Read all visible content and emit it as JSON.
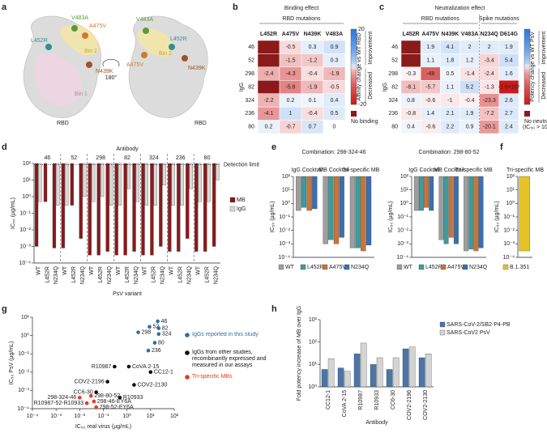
{
  "panel_labels": [
    "a",
    "b",
    "c",
    "d",
    "e",
    "f",
    "g",
    "h"
  ],
  "structure": {
    "left": [
      "V483A",
      "A475V",
      "L452R",
      "N439K",
      "Bin 2",
      "Bin 1",
      "RBD"
    ],
    "rotation": "180°",
    "right": [
      "V483A",
      "L452R",
      "Bin 2",
      "A475V",
      "N439K",
      "RBD"
    ]
  },
  "chart_data": [
    {
      "type": "heatmap",
      "title": "Binding effect",
      "column_groups": [
        "RBD mutations"
      ],
      "ylabel": "IgG",
      "columns": [
        "L452R",
        "A475V",
        "N439K",
        "V483A"
      ],
      "column_colors": [
        "#2f8f8f",
        "#d07a2a",
        "#a0522d",
        "#5a9a3a"
      ],
      "rows": [
        "46",
        "52",
        "298",
        "82",
        "324",
        "236",
        "80"
      ],
      "values": [
        [
          null,
          -0.5,
          0.3,
          0.9
        ],
        [
          null,
          -1.5,
          -1.2,
          0.3
        ],
        [
          -2.4,
          -4.3,
          -0.4,
          -1.9
        ],
        [
          null,
          -5.8,
          -1.9,
          -0.5
        ],
        [
          -2.2,
          0.2,
          0.1,
          0.4
        ],
        [
          -4.1,
          1.0,
          -0.4,
          0.5
        ],
        [
          0.2,
          -0.7,
          0.7,
          0.0
        ]
      ],
      "colorbar_label": "Affinity change vs WT RBD",
      "colorbar_lim": [
        -20,
        20
      ],
      "colorbar_ticks": [
        20,
        -20
      ],
      "improvement_label": "Improvement",
      "decrease_label": "Decreased",
      "null_label": "No binding"
    },
    {
      "type": "heatmap",
      "title": "Neutralization effect",
      "column_groups": [
        "RBD mutations",
        "Spike mutations"
      ],
      "ylabel": "IgG",
      "columns": [
        "L452R",
        "A475V",
        "N439K",
        "V483A",
        "N234Q",
        "D614G"
      ],
      "column_colors": [
        "#2f8f8f",
        "#d07a2a",
        "#a0522d",
        "#5a9a3a",
        "#2e6da4",
        "#111111"
      ],
      "rows": [
        "46",
        "52",
        "298",
        "82",
        "324",
        "236",
        "80"
      ],
      "values": [
        [
          null,
          1.9,
          4.1,
          2.0,
          2.0,
          1.9
        ],
        [
          null,
          1.1,
          1.8,
          1.2,
          -3.4,
          5.4
        ],
        [
          -0.3,
          -48.0,
          0.5,
          -1.4,
          -2.4,
          1.6
        ],
        [
          -8.1,
          -5.7,
          1.1,
          5.2,
          -1.3,
          -1600
        ],
        [
          0.8,
          -0.6,
          -1.0,
          -0.4,
          -23.3,
          2.6
        ],
        [
          -0.8,
          1.4,
          2.1,
          1.9,
          -7.2,
          2.7
        ],
        [
          0.4,
          -0.6,
          2.2,
          0.9,
          -20.1,
          2.4
        ]
      ],
      "value_labels": [
        [
          null,
          null,
          null,
          null,
          null,
          null
        ],
        [
          null,
          null,
          null,
          null,
          null,
          null
        ],
        [
          null,
          null,
          null,
          null,
          null,
          null
        ],
        [
          null,
          null,
          null,
          null,
          null,
          "-1.6×10³"
        ],
        [
          null,
          null,
          null,
          null,
          null,
          null
        ],
        [
          null,
          null,
          null,
          null,
          null,
          null
        ],
        [
          null,
          null,
          null,
          null,
          null,
          null
        ]
      ],
      "colorbar_label": "Potency change vs WT PsV",
      "colorbar_lim": [
        -100,
        100
      ],
      "improvement_label": "Improvement",
      "decrease_label": "Decreased",
      "null_label": "No neutral",
      "null_note": "(IC₅₀ > 100 µg/mL)"
    },
    {
      "type": "bar",
      "log_y": true,
      "bars_hang": true,
      "group_title": "Antibody",
      "groups": [
        "46",
        "52",
        "298",
        "82",
        "324",
        "236",
        "80"
      ],
      "categories": [
        "WT",
        "L452R",
        "N234Q",
        "WT",
        "L452R",
        "N234Q",
        "WT",
        "L452R",
        "N234Q",
        "WT",
        "L452R",
        "N234Q",
        "WT",
        "L452R",
        "N234Q",
        "WT",
        "L452R",
        "N234Q",
        "WT",
        "L452R",
        "N234Q"
      ],
      "series": [
        {
          "name": "MB",
          "color": "#8b1a1a",
          "values": [
            0.001,
            0.5,
            0.0008,
            0.0008,
            0.3,
            0.003,
            0.0003,
            0.0003,
            0.0005,
            0.0003,
            0.0003,
            0.0005,
            0.0003,
            0.0003,
            0.001,
            0.0005,
            0.0005,
            0.003,
            0.0005,
            0.0005,
            0.001
          ]
        },
        {
          "name": "IgG",
          "color": "#d9d9d9",
          "values": [
            0.5,
            100,
            0.3,
            0.3,
            100,
            1,
            0.5,
            1,
            0.3,
            0.3,
            3,
            0.5,
            0.3,
            0.3,
            5,
            0.3,
            0.3,
            3,
            0.5,
            0.5,
            10
          ]
        }
      ],
      "ylabel": "IC₅₀ (µg/mL)",
      "xlabel": "PsV variant",
      "ylim": [
        0.0001,
        100
      ],
      "yticks": [
        {
          "value": 0.0001,
          "label": "10⁻⁴"
        },
        {
          "value": 0.001,
          "label": "10⁻³"
        },
        {
          "value": 0.01,
          "label": "10⁻²"
        },
        {
          "value": 0.1,
          "label": "10⁻¹"
        },
        {
          "value": 1,
          "label": "10⁰"
        },
        {
          "value": 10,
          "label": "10¹"
        },
        {
          "value": 100,
          "label": "10²"
        }
      ],
      "detection_limit": 100,
      "detection_label": "Detection limit",
      "legend": "right"
    },
    {
      "type": "bar",
      "log_y": true,
      "bars_hang": true,
      "category_axis": "top",
      "title": "Combination: 298-324-46",
      "categories": [
        "IgG Cocktail",
        "MB Cocktail",
        "Tri-specific MB"
      ],
      "series": [
        {
          "name": "WT",
          "color": "#9e9e9e",
          "values": [
            0.3,
            0.001,
            0.0005
          ]
        },
        {
          "name": "L452R",
          "color": "#3f9a9a",
          "values": [
            0.5,
            0.002,
            0.0005
          ]
        },
        {
          "name": "A475V",
          "color": "#c8743a",
          "values": [
            0.3,
            0.001,
            0.0003
          ]
        },
        {
          "name": "N234Q",
          "color": "#3b6fb0",
          "values": [
            0.4,
            0.003,
            0.0008
          ]
        }
      ],
      "ylabel": "IC₅₀ (µg/mL)",
      "ylim": [
        0.0001,
        100
      ],
      "yticks": [
        {
          "value": 0.0001,
          "label": "10⁻⁴"
        },
        {
          "value": 0.001,
          "label": "10⁻³"
        },
        {
          "value": 0.01,
          "label": "10⁻²"
        },
        {
          "value": 0.1,
          "label": "10⁻¹"
        },
        {
          "value": 1,
          "label": "10⁰"
        },
        {
          "value": 10,
          "label": "10¹"
        },
        {
          "value": 100,
          "label": "10²"
        }
      ],
      "legend": "bottom"
    },
    {
      "type": "bar",
      "log_y": true,
      "bars_hang": true,
      "category_axis": "top",
      "title": "Combination: 298-80-52",
      "categories": [
        "IgG Cocktail",
        "MB Cocktail",
        "Tri-specific MB"
      ],
      "series": [
        {
          "name": "WT",
          "color": "#9e9e9e",
          "values": [
            0.3,
            0.002,
            0.0003
          ]
        },
        {
          "name": "L452R",
          "color": "#3f9a9a",
          "values": [
            0.3,
            0.001,
            0.0004
          ]
        },
        {
          "name": "A475V",
          "color": "#c8743a",
          "values": [
            0.5,
            0.003,
            0.0003
          ]
        },
        {
          "name": "N234Q",
          "color": "#3b6fb0",
          "values": [
            0.3,
            0.001,
            0.0005
          ]
        }
      ],
      "ylabel": "IC₅₀ (µg/mL)",
      "ylim": [
        0.0001,
        100
      ],
      "yticks": [
        {
          "value": 0.0001,
          "label": "10⁻⁴"
        },
        {
          "value": 0.001,
          "label": "10⁻³"
        },
        {
          "value": 0.01,
          "label": "10⁻²"
        },
        {
          "value": 0.1,
          "label": "10⁻¹"
        },
        {
          "value": 1,
          "label": "10⁰"
        },
        {
          "value": 10,
          "label": "10¹"
        },
        {
          "value": 100,
          "label": "10²"
        }
      ],
      "legend": "bottom"
    },
    {
      "type": "bar",
      "log_y": true,
      "bars_hang": true,
      "category_axis": "top",
      "categories": [
        "Tri-specific MB"
      ],
      "series": [
        {
          "name": "B.1.351",
          "color": "#e6c229",
          "values": [
            0.0003
          ]
        }
      ],
      "ylabel": "IC₅₀ (µg/mL)",
      "ylim": [
        0.0001,
        100
      ],
      "yticks": [
        {
          "value": 0.0001,
          "label": "10⁻⁴"
        },
        {
          "value": 0.001,
          "label": "10⁻³"
        },
        {
          "value": 0.01,
          "label": "10⁻²"
        },
        {
          "value": 0.1,
          "label": "10⁻¹"
        },
        {
          "value": 1,
          "label": "10⁰"
        },
        {
          "value": 10,
          "label": "10¹"
        },
        {
          "value": 100,
          "label": "10²"
        }
      ],
      "legend": "bottom"
    },
    {
      "type": "scatter",
      "log_x": true,
      "log_y": true,
      "series": [
        {
          "name": "IgGs reported in this study",
          "color": "#2e6da4",
          "labels": [
            "46",
            "52",
            "82",
            "324",
            "298",
            "80",
            "236"
          ],
          "x": [
            20,
            9,
            22,
            22,
            3,
            15,
            8
          ],
          "values": [
            6,
            3,
            2.5,
            1.2,
            1.5,
            0.4,
            0.15
          ]
        },
        {
          "name": "IgGs from other studies, recombinantly expressed and measured in our assays",
          "color": "#111111",
          "labels": [
            "R10987",
            "CoVA 2-15",
            "CC12-1",
            "COV2-2196",
            "COV2-2130",
            "R10933",
            "CC6-30"
          ],
          "x": [
            0.3,
            1.2,
            10,
            0.15,
            2,
            0.5,
            0.05
          ],
          "values": [
            0.02,
            0.02,
            0.01,
            0.003,
            0.002,
            0.0004,
            0.0008
          ]
        },
        {
          "name": "Tri-specific MBs",
          "color": "#e8371e",
          "labels": [
            "298-324-46",
            "298-80-52",
            "298-46-EY6A",
            "R10987-52-R10933",
            "298-52-EY6A"
          ],
          "x": [
            0.01,
            0.03,
            0.04,
            0.02,
            0.05
          ],
          "values": [
            0.0004,
            0.0005,
            0.00025,
            0.0002,
            0.00012
          ]
        }
      ],
      "xlabel": "IC₅₀ real virus (µg/mL)",
      "ylabel": "IC₅₀ PsV (µg/mL)",
      "xlim": [
        0.0001,
        100
      ],
      "ylim": [
        0.0001,
        10
      ],
      "xticks": [
        {
          "value": 0.0001,
          "label": "10⁻⁴"
        },
        {
          "value": 0.001,
          "label": "10⁻³"
        },
        {
          "value": 0.01,
          "label": "10⁻²"
        },
        {
          "value": 0.1,
          "label": "10⁻¹"
        },
        {
          "value": 1,
          "label": "10⁰"
        },
        {
          "value": 10,
          "label": "10¹"
        },
        {
          "value": 100,
          "label": "10²"
        }
      ],
      "yticks": [
        {
          "value": 0.0001,
          "label": "10⁻⁴"
        },
        {
          "value": 0.001,
          "label": "10⁻³"
        },
        {
          "value": 0.01,
          "label": "10⁻²"
        },
        {
          "value": 0.1,
          "label": "10⁻¹"
        },
        {
          "value": 1,
          "label": "10⁰"
        },
        {
          "value": 10,
          "label": "10¹"
        }
      ],
      "legend": "right"
    },
    {
      "type": "bar",
      "log_y": true,
      "categories": [
        "CC12-1",
        "CoVA 2-15",
        "R10987",
        "R10933",
        "CC6-30",
        "COV2-2196",
        "COV2-2130"
      ],
      "series": [
        {
          "name": "SARS-CoV-2/SB2-P4-PB",
          "color": "#4a76a8",
          "values": [
            6,
            7,
            30,
            10,
            6,
            50,
            20
          ]
        },
        {
          "name": "SARS-CoV2 PsV",
          "color": "#d4d4d4",
          "values": [
            18,
            5,
            90,
            20,
            20,
            60,
            30
          ]
        }
      ],
      "ylabel": "Fold potency increase of MB over IgG",
      "xlabel": "Antibody",
      "ylim": [
        1,
        1000
      ],
      "yticks": [
        {
          "value": 1,
          "label": "10⁰"
        },
        {
          "value": 10,
          "label": "10¹"
        },
        {
          "value": 100,
          "label": "10²"
        },
        {
          "value": 1000,
          "label": "10³"
        }
      ],
      "legend": "top-right"
    }
  ]
}
